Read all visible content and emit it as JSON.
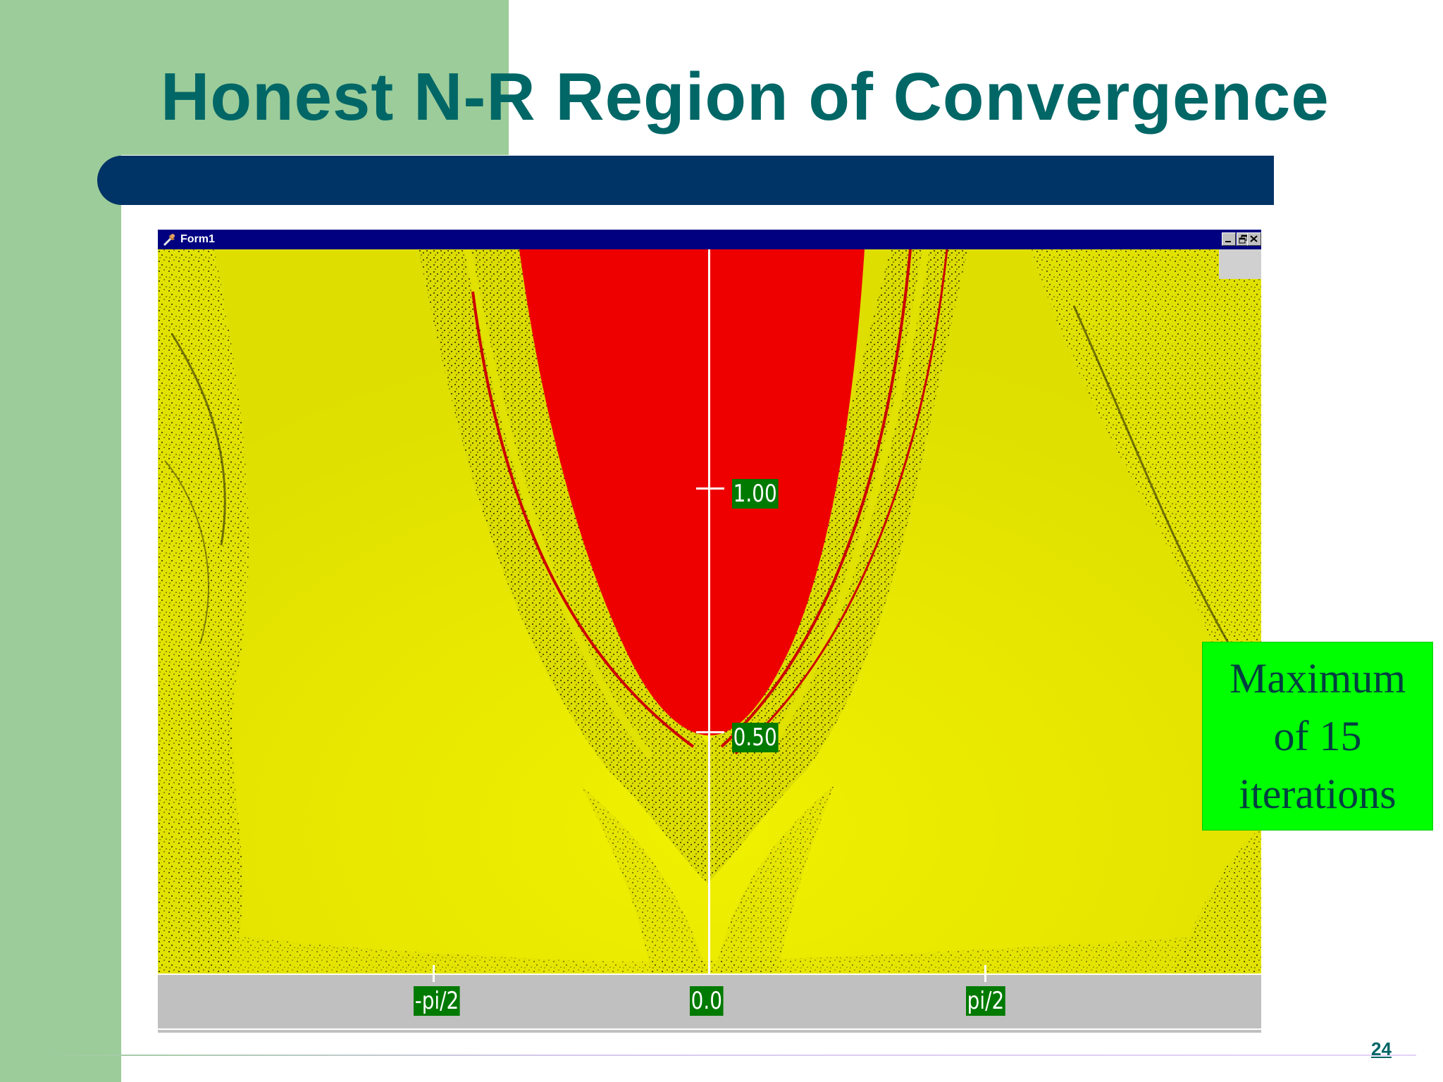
{
  "slide": {
    "title": "Honest N-R Region of Convergence",
    "page_number": "24"
  },
  "window": {
    "title": "Form1",
    "controls": [
      "minimize-icon",
      "restore-icon",
      "close-icon"
    ]
  },
  "plot": {
    "x_axis_labels": {
      "neg_pi_half": "-pi/2",
      "zero": "0.0",
      "pi_half": "pi/2"
    },
    "y_axis_labels": {
      "one": "1.00",
      "half": "0.50"
    }
  },
  "annotation": {
    "text": "Maximum\nof 15\niterations"
  },
  "colors": {
    "title": "#006666",
    "title_bar": "#003366",
    "side_band": "#9ccc9a",
    "converged_region": "#ee0000",
    "background_region": "#e6e600",
    "label_background": "#007a00",
    "annotation_background": "#00ff00"
  }
}
